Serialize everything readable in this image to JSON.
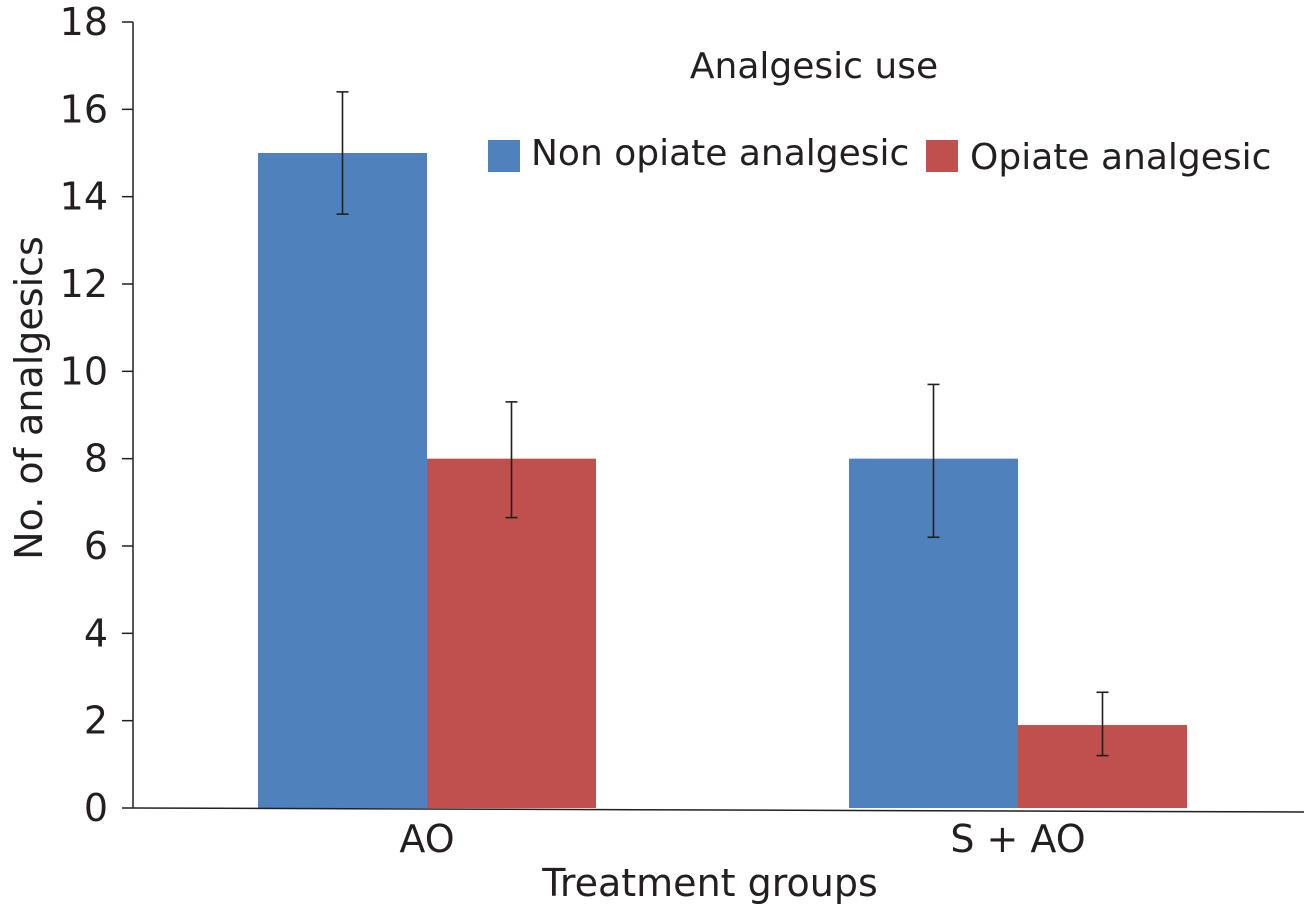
{
  "chart_data": {
    "type": "bar",
    "title": "",
    "xlabel": "Treatment groups",
    "ylabel": "No. of analgesics",
    "categories": [
      "AO",
      "S + AO"
    ],
    "ylim": [
      0,
      18
    ],
    "yticks": [
      0,
      2,
      4,
      6,
      8,
      10,
      12,
      14,
      16,
      18
    ],
    "grid": false,
    "legend": {
      "title": "Analgesic use",
      "placement": "top-right"
    },
    "series": [
      {
        "name": "Non opiate analgesic",
        "color": "#4f81bd",
        "values": [
          15,
          8
        ],
        "error_low": [
          13.6,
          6.2
        ],
        "error_high": [
          16.4,
          9.7
        ]
      },
      {
        "name": "Opiate analgesic",
        "color": "#c0504d",
        "values": [
          8,
          1.9
        ],
        "error_low": [
          6.65,
          1.2
        ],
        "error_high": [
          9.3,
          2.65
        ]
      }
    ]
  }
}
